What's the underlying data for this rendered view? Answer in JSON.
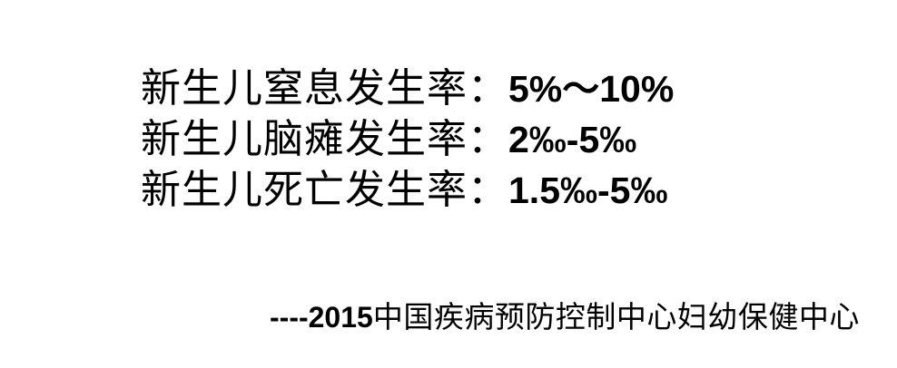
{
  "slide": {
    "background_color": "#ffffff",
    "text_color": "#000000",
    "stats": [
      {
        "label": "新生儿窒息发生率：",
        "value": "5%～10%"
      },
      {
        "label": "新生儿脑瘫发生率：",
        "value": "2‰-5‰"
      },
      {
        "label": "新生儿死亡发生率：",
        "value": "1.5‰-5‰"
      }
    ],
    "source": {
      "prefix": "----2015",
      "org": "中国疾病预防控制中心妇幼保健中心"
    }
  }
}
